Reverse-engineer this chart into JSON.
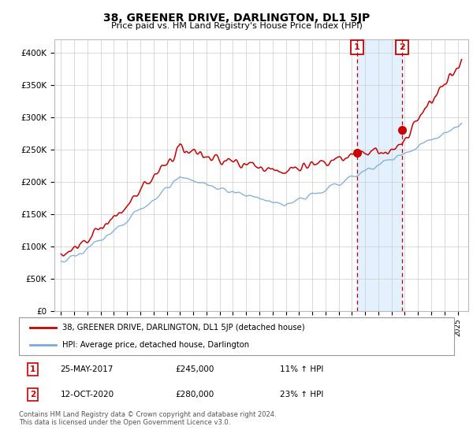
{
  "title": "38, GREENER DRIVE, DARLINGTON, DL1 5JP",
  "subtitle": "Price paid vs. HM Land Registry's House Price Index (HPI)",
  "ylabel_ticks": [
    "£0",
    "£50K",
    "£100K",
    "£150K",
    "£200K",
    "£250K",
    "£300K",
    "£350K",
    "£400K"
  ],
  "ytick_values": [
    0,
    50000,
    100000,
    150000,
    200000,
    250000,
    300000,
    350000,
    400000
  ],
  "ylim": [
    0,
    420000
  ],
  "red_color": "#cc0000",
  "blue_color": "#7aaadd",
  "dashed_color": "#cc0000",
  "shaded_color": "#ddeeff",
  "marker1_year": 2017.38,
  "marker2_year": 2020.78,
  "sale1_price_val": 245000,
  "sale2_price_val": 280000,
  "sale1_date": "25-MAY-2017",
  "sale1_price": "£245,000",
  "sale1_hpi": "11% ↑ HPI",
  "sale2_date": "12-OCT-2020",
  "sale2_price": "£280,000",
  "sale2_hpi": "23% ↑ HPI",
  "legend_label1": "38, GREENER DRIVE, DARLINGTON, DL1 5JP (detached house)",
  "legend_label2": "HPI: Average price, detached house, Darlington",
  "footnote": "Contains HM Land Registry data © Crown copyright and database right 2024.\nThis data is licensed under the Open Government Licence v3.0."
}
